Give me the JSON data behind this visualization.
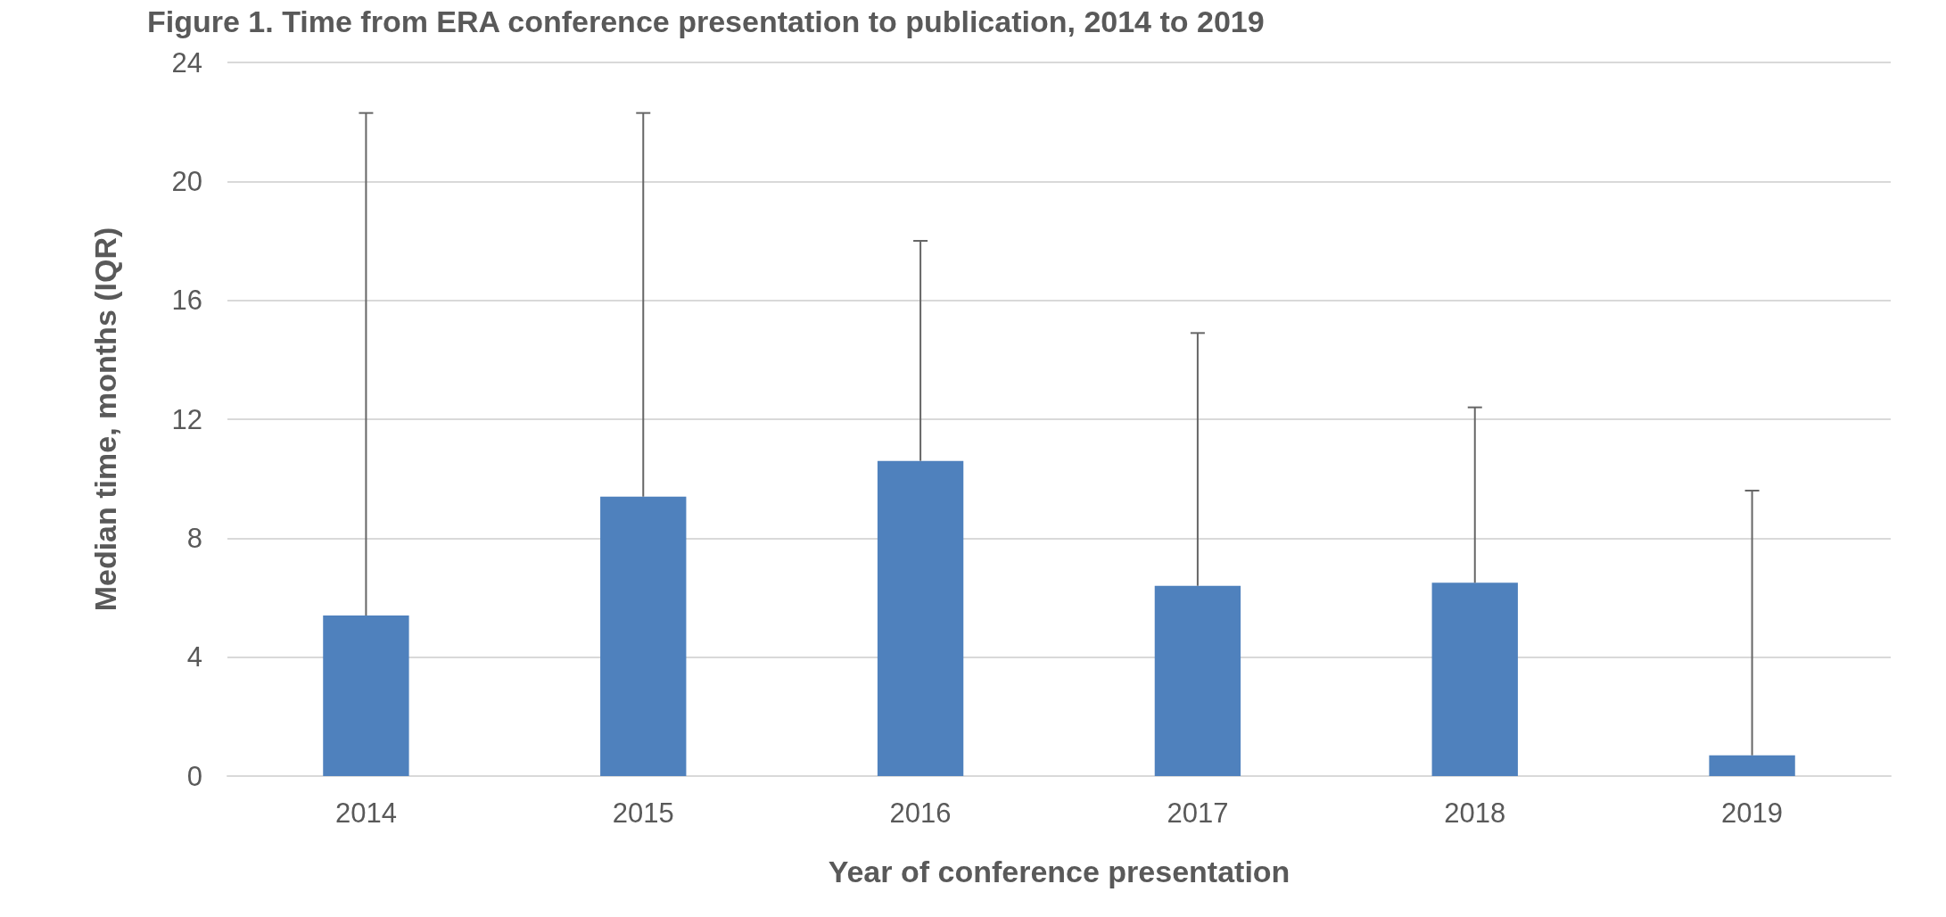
{
  "chart_data": {
    "type": "bar",
    "title": "Figure 1. Time from ERA conference presentation to publication, 2014 to 2019",
    "xlabel": "Year of conference presentation",
    "ylabel": "Median time, months (IQR)",
    "categories": [
      "2014",
      "2015",
      "2016",
      "2017",
      "2018",
      "2019"
    ],
    "values": [
      5.4,
      9.4,
      10.6,
      6.4,
      6.5,
      0.7
    ],
    "errors": [
      [
        5.4,
        22.3
      ],
      [
        9.4,
        22.3
      ],
      [
        10.6,
        18.0
      ],
      [
        6.4,
        14.9
      ],
      [
        6.5,
        12.4
      ],
      [
        0.7,
        9.6
      ]
    ],
    "color": "#4f81bd",
    "ylim": [
      0,
      24
    ],
    "yticks": [
      0,
      4,
      8,
      12,
      16,
      20,
      24
    ],
    "grid": "y"
  }
}
